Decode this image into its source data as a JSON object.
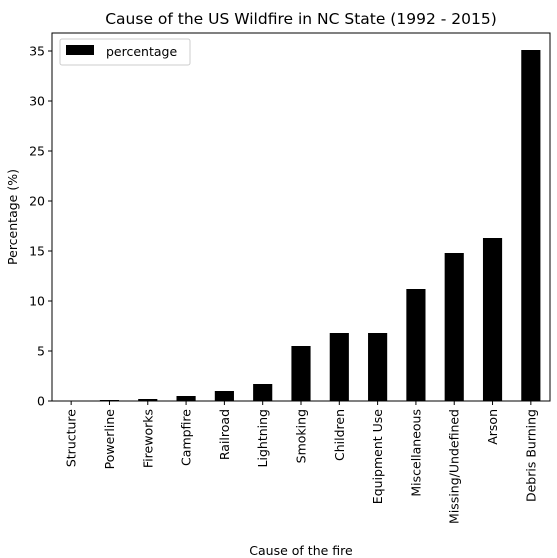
{
  "chart_data": {
    "type": "bar",
    "title": "Cause of the US Wildfire in NC State (1992 - 2015)",
    "xlabel": "Cause of the fire",
    "ylabel": "Percentage (%)",
    "ylim": [
      0,
      36.8
    ],
    "yticks": [
      0,
      5,
      10,
      15,
      20,
      25,
      30,
      35
    ],
    "grid": false,
    "legend": {
      "placement": "top-left",
      "entries": [
        "percentage"
      ]
    },
    "categories": [
      "Structure",
      "Powerline",
      "Fireworks",
      "Campfire",
      "Railroad",
      "Lightning",
      "Smoking",
      "Children",
      "Equipment Use",
      "Miscellaneous",
      "Missing/Undefined",
      "Arson",
      "Debris Burning"
    ],
    "series": [
      {
        "name": "percentage",
        "color": "#000000",
        "values": [
          0.02,
          0.1,
          0.2,
          0.5,
          1.0,
          1.7,
          5.5,
          6.8,
          6.8,
          11.2,
          14.8,
          16.3,
          35.1
        ]
      }
    ]
  }
}
